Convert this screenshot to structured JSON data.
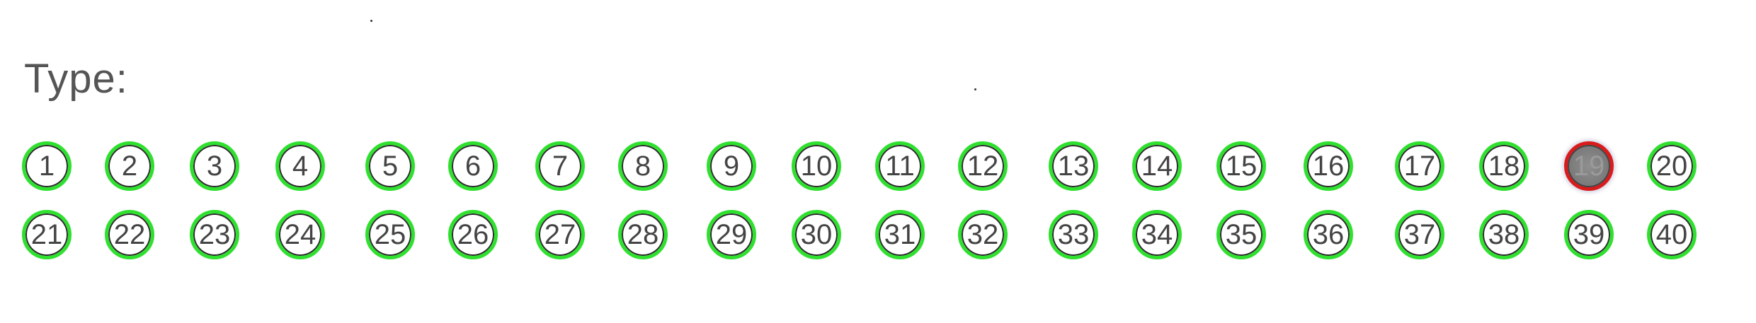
{
  "form": {
    "label": "Type:",
    "options_row1": [
      "1",
      "2",
      "3",
      "4",
      "5",
      "6",
      "7",
      "8",
      "9",
      "10",
      "11",
      "12",
      "13",
      "14",
      "15",
      "16",
      "17",
      "18",
      "19",
      "20"
    ],
    "options_row2": [
      "21",
      "22",
      "23",
      "24",
      "25",
      "26",
      "27",
      "28",
      "29",
      "30",
      "31",
      "32",
      "33",
      "34",
      "35",
      "36",
      "37",
      "38",
      "39",
      "40"
    ],
    "selected": "19",
    "colors": {
      "ring_detected": "#2fe02f",
      "ring_selected": "#d91b1b",
      "fill_selected": "#7c7c7c",
      "text": "#444444"
    }
  }
}
